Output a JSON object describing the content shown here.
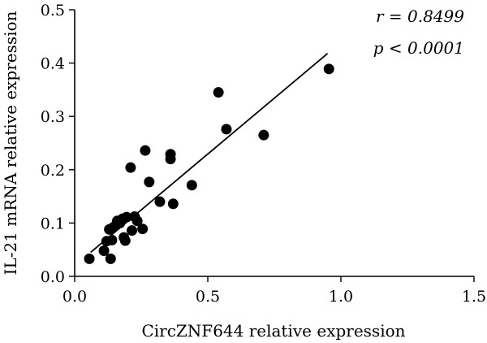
{
  "chart_data": {
    "type": "scatter",
    "title": "",
    "xlabel": "CircZNF644 relative expression",
    "ylabel": "IL-21 mRNA relative expression",
    "xlim": [
      0,
      1.5
    ],
    "ylim": [
      0,
      0.5
    ],
    "x_ticks": [
      "0.0",
      "0.5",
      "1.0",
      "1.5"
    ],
    "y_ticks": [
      "0.0",
      "0.1",
      "0.2",
      "0.3",
      "0.4",
      "0.5"
    ],
    "grid": false,
    "legend": "none",
    "annotations": {
      "r_label": "r = 0.8499",
      "p_label": "p < 0.0001"
    },
    "fit_line": {
      "x": [
        0.06,
        0.95
      ],
      "y": [
        0.045,
        0.418
      ]
    },
    "points": [
      {
        "x": 0.055,
        "y": 0.033
      },
      {
        "x": 0.11,
        "y": 0.048
      },
      {
        "x": 0.12,
        "y": 0.066
      },
      {
        "x": 0.13,
        "y": 0.088
      },
      {
        "x": 0.135,
        "y": 0.033
      },
      {
        "x": 0.14,
        "y": 0.068
      },
      {
        "x": 0.145,
        "y": 0.092
      },
      {
        "x": 0.155,
        "y": 0.096
      },
      {
        "x": 0.16,
        "y": 0.104
      },
      {
        "x": 0.17,
        "y": 0.1
      },
      {
        "x": 0.18,
        "y": 0.108
      },
      {
        "x": 0.185,
        "y": 0.073
      },
      {
        "x": 0.19,
        "y": 0.067
      },
      {
        "x": 0.195,
        "y": 0.111
      },
      {
        "x": 0.21,
        "y": 0.204
      },
      {
        "x": 0.215,
        "y": 0.086
      },
      {
        "x": 0.225,
        "y": 0.112
      },
      {
        "x": 0.235,
        "y": 0.104
      },
      {
        "x": 0.255,
        "y": 0.089
      },
      {
        "x": 0.265,
        "y": 0.236
      },
      {
        "x": 0.28,
        "y": 0.177
      },
      {
        "x": 0.32,
        "y": 0.14
      },
      {
        "x": 0.36,
        "y": 0.229
      },
      {
        "x": 0.36,
        "y": 0.22
      },
      {
        "x": 0.37,
        "y": 0.136
      },
      {
        "x": 0.44,
        "y": 0.171
      },
      {
        "x": 0.54,
        "y": 0.345
      },
      {
        "x": 0.57,
        "y": 0.276
      },
      {
        "x": 0.71,
        "y": 0.265
      },
      {
        "x": 0.955,
        "y": 0.389
      }
    ]
  }
}
